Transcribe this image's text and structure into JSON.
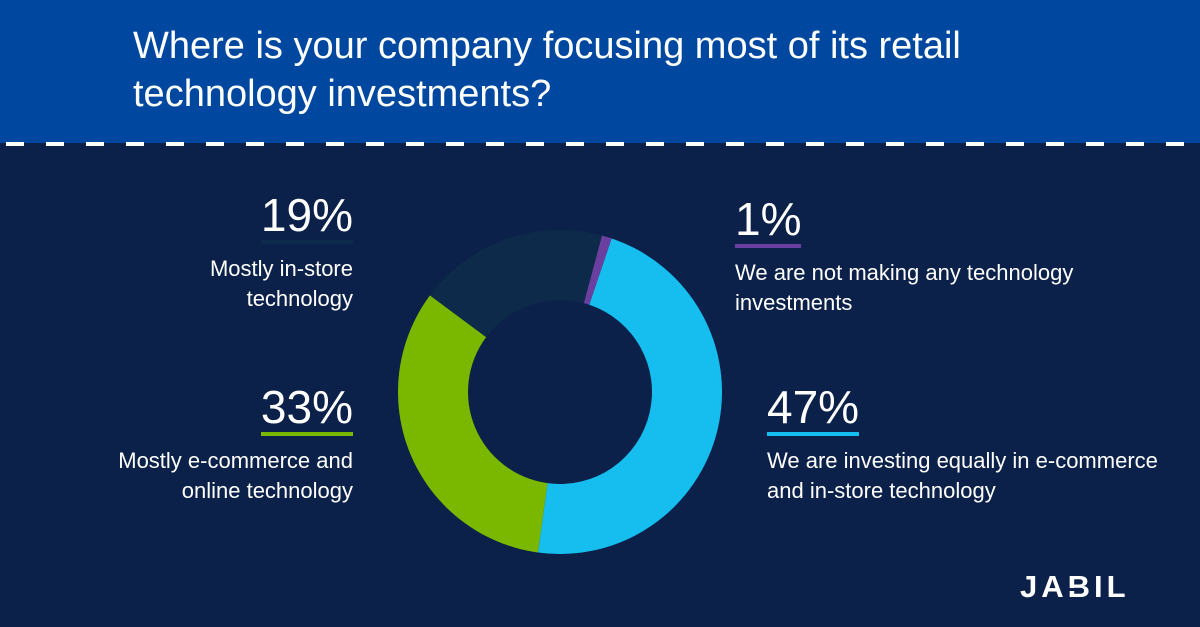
{
  "header": {
    "title": "Where is your company focusing most of its retail technology investments?"
  },
  "chart_data": {
    "type": "pie",
    "title": "Where is your company focusing most of its retail technology investments?",
    "slices": [
      {
        "label": "We are not making any technology investments",
        "value": 1,
        "display": "1%",
        "color": "#6a3fa0"
      },
      {
        "label": "We are investing equally in e-commerce and in-store technology",
        "value": 47,
        "display": "47%",
        "color": "#16bef0"
      },
      {
        "label": "Mostly e-commerce and online technology",
        "value": 33,
        "display": "33%",
        "color": "#7ab800"
      },
      {
        "label": "Mostly in-store technology",
        "value": 19,
        "display": "19%",
        "color": "#0e2a4a"
      }
    ]
  },
  "callouts": {
    "instore": {
      "pct": "19%",
      "label": "Mostly in-store technology",
      "color": "#0e2a4a"
    },
    "ecom": {
      "pct": "33%",
      "label": "Mostly e-commerce and online technology",
      "color": "#7ab800"
    },
    "none": {
      "pct": "1%",
      "label": "We are not making any technology investments",
      "color": "#6a3fa0"
    },
    "equal": {
      "pct": "47%",
      "label": "We are investing equally in e-commerce and in-store technology",
      "color": "#16bef0"
    }
  },
  "brand": {
    "logo_text": "JABIL"
  }
}
